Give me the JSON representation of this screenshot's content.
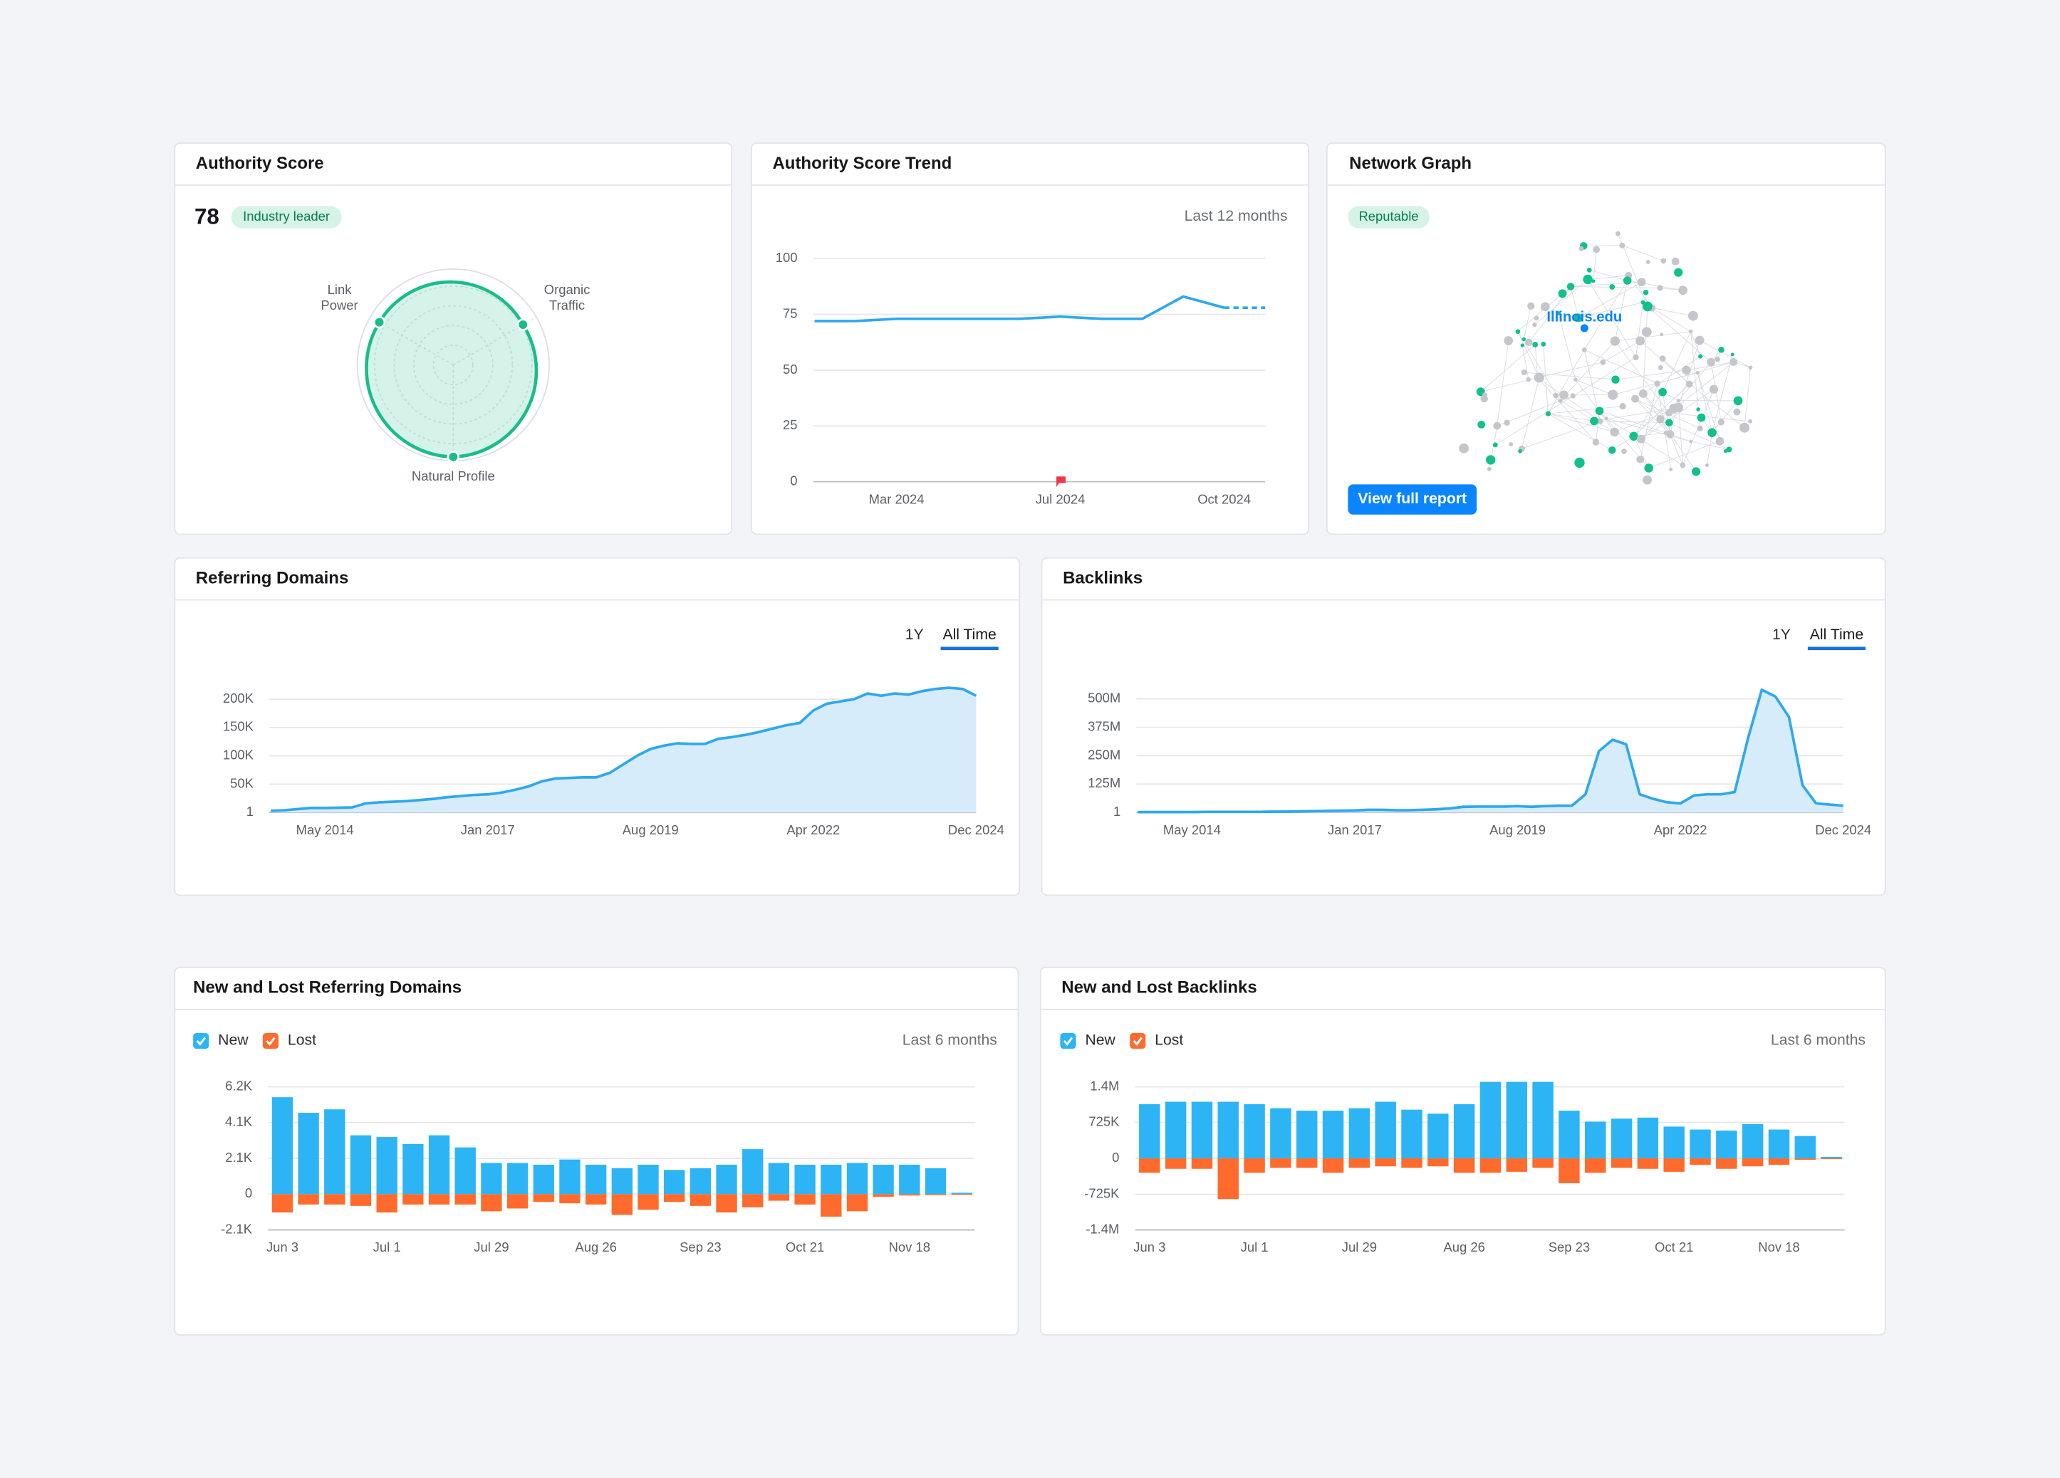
{
  "chart_data": [
    {
      "type": "radar",
      "title": "Authority Score",
      "score": 78,
      "badge": "Industry leader",
      "axes": [
        "Link Power",
        "Organic Traffic",
        "Natural Profile"
      ],
      "values": [
        89,
        84,
        96
      ],
      "rlim": [
        0,
        100
      ],
      "color": "#19bd8a"
    },
    {
      "type": "line",
      "title": "Authority Score Trend",
      "subtitle": "Last 12 months",
      "categories": [
        null,
        null,
        "Mar 2024",
        null,
        null,
        null,
        "Jul 2024",
        null,
        null,
        null,
        "Oct 2024",
        null
      ],
      "values": [
        72,
        72,
        73,
        73,
        73,
        73,
        74,
        73,
        73,
        83,
        78,
        78
      ],
      "color": "#2ea8ee",
      "ylim": [
        0,
        100
      ],
      "yticks": [
        0,
        25,
        50,
        75,
        100
      ],
      "grid": true,
      "last_segment_dashed": true
    },
    {
      "type": "network",
      "title": "Network Graph",
      "badge": "Reputable",
      "center_label": "Illinois.edu",
      "button": "View full report"
    },
    {
      "type": "area",
      "title": "Referring Domains",
      "tabs": [
        "1Y",
        "All Time"
      ],
      "categories": [
        null,
        null,
        null,
        null,
        "May 2014",
        null,
        null,
        null,
        null,
        null,
        null,
        null,
        null,
        null,
        null,
        null,
        "Jan 2017",
        null,
        null,
        null,
        null,
        null,
        null,
        null,
        null,
        null,
        null,
        null,
        "Aug 2019",
        null,
        null,
        null,
        null,
        null,
        null,
        null,
        null,
        null,
        null,
        null,
        "Apr 2022",
        null,
        null,
        null,
        null,
        null,
        null,
        null,
        null,
        null,
        null,
        null,
        "Dec 2024"
      ],
      "values": [
        3000,
        4000,
        6000,
        8000,
        8000,
        8500,
        9000,
        16000,
        18000,
        19000,
        20000,
        22000,
        24000,
        27000,
        29000,
        31000,
        32000,
        35000,
        40000,
        46000,
        55000,
        60000,
        61000,
        62000,
        62000,
        70000,
        85000,
        100000,
        112000,
        118000,
        122000,
        121000,
        121000,
        130000,
        133000,
        137000,
        142000,
        148000,
        154000,
        158000,
        180000,
        192000,
        196000,
        200000,
        210000,
        206000,
        210000,
        208000,
        214000,
        218000,
        220000,
        218000,
        206000
      ],
      "color": "#2ea8ee",
      "fill": "#d6ecfb",
      "ylim": [
        1,
        220000
      ],
      "yticks": [
        1,
        {
          "value": 50000,
          "label": "50K"
        },
        {
          "value": 100000,
          "label": "100K"
        },
        {
          "value": 150000,
          "label": "150K"
        },
        {
          "value": 200000,
          "label": "200K"
        }
      ],
      "grid": true
    },
    {
      "type": "area",
      "title": "Backlinks",
      "tabs": [
        "1Y",
        "All Time"
      ],
      "categories": [
        null,
        null,
        null,
        null,
        "May 2014",
        null,
        null,
        null,
        null,
        null,
        null,
        null,
        null,
        null,
        null,
        null,
        "Jan 2017",
        null,
        null,
        null,
        null,
        null,
        null,
        null,
        null,
        null,
        null,
        null,
        "Aug 2019",
        null,
        null,
        null,
        null,
        null,
        null,
        null,
        null,
        null,
        null,
        null,
        "Apr 2022",
        null,
        null,
        null,
        null,
        null,
        null,
        null,
        null,
        null,
        null,
        null,
        "Dec 2024"
      ],
      "values": [
        2000000,
        2000000,
        2000000,
        2000000,
        2000000,
        3000000,
        3000000,
        3000000,
        3000000,
        3000000,
        4000000,
        4000000,
        5000000,
        6000000,
        7000000,
        8000000,
        9000000,
        12000000,
        12000000,
        10000000,
        10000000,
        12000000,
        14000000,
        18000000,
        25000000,
        26000000,
        26000000,
        26000000,
        28000000,
        25000000,
        28000000,
        30000000,
        30000000,
        80000000,
        270000000,
        320000000,
        300000000,
        80000000,
        60000000,
        45000000,
        40000000,
        75000000,
        80000000,
        80000000,
        90000000,
        330000000,
        540000000,
        510000000,
        420000000,
        120000000,
        40000000,
        35000000,
        30000000
      ],
      "color": "#2ea8ee",
      "fill": "#d6ecfb",
      "ylim": [
        1,
        560000000
      ],
      "yticks": [
        1,
        {
          "value": 125000000,
          "label": "125M"
        },
        {
          "value": 250000000,
          "label": "250M"
        },
        {
          "value": 375000000,
          "label": "375M"
        },
        {
          "value": 500000000,
          "label": "500M"
        }
      ],
      "grid": true
    },
    {
      "type": "bar",
      "title": "New and Lost Referring Domains",
      "subtitle": "Last 6 months",
      "categories": [
        "Jun 3",
        null,
        null,
        null,
        "Jul 1",
        null,
        null,
        null,
        "Jul 29",
        null,
        null,
        null,
        "Aug 26",
        null,
        null,
        null,
        "Sep 23",
        null,
        null,
        null,
        "Oct 21",
        null,
        null,
        null,
        "Nov 18",
        null,
        null
      ],
      "series": [
        {
          "name": "New",
          "color": "#2db4f5",
          "values": [
            5600,
            4700,
            4900,
            3400,
            3300,
            2900,
            3400,
            2700,
            1800,
            1800,
            1700,
            2000,
            1700,
            1500,
            1700,
            1400,
            1500,
            1700,
            2600,
            1800,
            1700,
            1700,
            1800,
            1700,
            1700,
            1500,
            80
          ]
        },
        {
          "name": "Lost",
          "color": "#ff6b2c",
          "values": [
            -1060,
            -600,
            -600,
            -680,
            -1060,
            -600,
            -600,
            -600,
            -990,
            -830,
            -450,
            -530,
            -600,
            -1200,
            -900,
            -450,
            -680,
            -1060,
            -760,
            -380,
            -600,
            -1300,
            -990,
            -150,
            -80,
            -60,
            -10
          ]
        }
      ],
      "ylim": [
        -2067,
        6200
      ],
      "yticks": [
        {
          "value": -2067,
          "label": "-2.1K"
        },
        0,
        {
          "value": 2067,
          "label": "2.1K"
        },
        {
          "value": 4133,
          "label": "4.1K"
        },
        {
          "value": 6200,
          "label": "6.2K"
        }
      ],
      "grid": true
    },
    {
      "type": "bar",
      "title": "New and Lost Backlinks",
      "subtitle": "Last 6 months",
      "categories": [
        "Jun 3",
        null,
        null,
        null,
        "Jul 1",
        null,
        null,
        null,
        "Jul 29",
        null,
        null,
        null,
        "Aug 26",
        null,
        null,
        null,
        "Sep 23",
        null,
        null,
        null,
        "Oct 21",
        null,
        null,
        null,
        "Nov 18",
        null,
        null
      ],
      "series": [
        {
          "name": "New",
          "color": "#2db4f5",
          "values": [
            1090000,
            1140000,
            1140000,
            1140000,
            1090000,
            1010000,
            960000,
            960000,
            1010000,
            1140000,
            980000,
            900000,
            1090000,
            1540000,
            1540000,
            1540000,
            960000,
            740000,
            800000,
            820000,
            640000,
            580000,
            560000,
            690000,
            580000,
            450000,
            30000
          ]
        },
        {
          "name": "Lost",
          "color": "#ff6b2c",
          "values": [
            -290000,
            -210000,
            -210000,
            -820000,
            -290000,
            -190000,
            -190000,
            -290000,
            -190000,
            -160000,
            -190000,
            -160000,
            -290000,
            -290000,
            -270000,
            -190000,
            -500000,
            -290000,
            -190000,
            -210000,
            -270000,
            -130000,
            -210000,
            -160000,
            -130000,
            -30000,
            -10000
          ]
        }
      ],
      "ylim": [
        -1440000,
        1440000
      ],
      "yticks": [
        {
          "value": -1440000,
          "label": "-1.4M"
        },
        {
          "value": -725000,
          "label": "-725K"
        },
        0,
        {
          "value": 725000,
          "label": "725K"
        },
        {
          "value": 1440000,
          "label": "1.4M"
        }
      ],
      "grid": true
    }
  ]
}
